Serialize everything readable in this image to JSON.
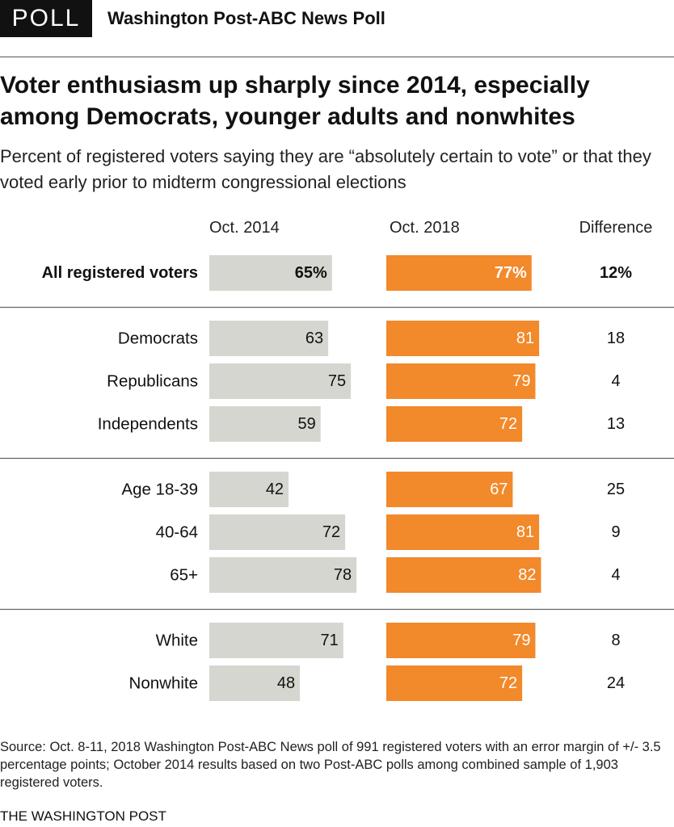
{
  "header": {
    "badge": "POLL",
    "source_name": "Washington Post-ABC News Poll"
  },
  "title": "Voter enthusiasm up sharply since 2014, especially among Democrats, younger adults and nonwhites",
  "subtitle": "Percent of registered voters saying they are “absolutely certain to vote” or that they voted early prior to midterm congressional elections",
  "footnote": "Source: Oct. 8-11, 2018 Washington Post-ABC News poll of 991 registered voters with an error margin of +/- 3.5 percentage points; October 2014 results based on two Post-ABC polls among combined sample of 1,903 registered voters.",
  "credit": "THE WASHINGTON POST",
  "colors": {
    "bar_2014": "#d6d6d0",
    "bar_2018": "#f2892a",
    "divider": "#666666"
  },
  "chart_data": {
    "type": "bar",
    "orientation": "horizontal",
    "columns": [
      "Oct. 2014",
      "Oct. 2018",
      "Difference"
    ],
    "groups": [
      {
        "rows": [
          {
            "label": "All registered voters",
            "v2014": 65,
            "v2018": 77,
            "diff": 12,
            "v2014_label": "65%",
            "v2018_label": "77%",
            "diff_label": "12%",
            "bold": true
          }
        ]
      },
      {
        "rows": [
          {
            "label": "Democrats",
            "v2014": 63,
            "v2018": 81,
            "diff": 18,
            "v2014_label": "63",
            "v2018_label": "81",
            "diff_label": "18"
          },
          {
            "label": "Republicans",
            "v2014": 75,
            "v2018": 79,
            "diff": 4,
            "v2014_label": "75",
            "v2018_label": "79",
            "diff_label": "4"
          },
          {
            "label": "Independents",
            "v2014": 59,
            "v2018": 72,
            "diff": 13,
            "v2014_label": "59",
            "v2018_label": "72",
            "diff_label": "13"
          }
        ]
      },
      {
        "rows": [
          {
            "label": "Age 18-39",
            "v2014": 42,
            "v2018": 67,
            "diff": 25,
            "v2014_label": "42",
            "v2018_label": "67",
            "diff_label": "25"
          },
          {
            "label": "40-64",
            "v2014": 72,
            "v2018": 81,
            "diff": 9,
            "v2014_label": "72",
            "v2018_label": "81",
            "diff_label": "9"
          },
          {
            "label": "65+",
            "v2014": 78,
            "v2018": 82,
            "diff": 4,
            "v2014_label": "78",
            "v2018_label": "82",
            "diff_label": "4"
          }
        ]
      },
      {
        "rows": [
          {
            "label": "White",
            "v2014": 71,
            "v2018": 79,
            "diff": 8,
            "v2014_label": "71",
            "v2018_label": "79",
            "diff_label": "8"
          },
          {
            "label": "Nonwhite",
            "v2014": 48,
            "v2018": 72,
            "diff": 24,
            "v2014_label": "48",
            "v2018_label": "72",
            "diff_label": "24"
          }
        ]
      }
    ],
    "xlim": [
      0,
      100
    ],
    "grid": false
  }
}
